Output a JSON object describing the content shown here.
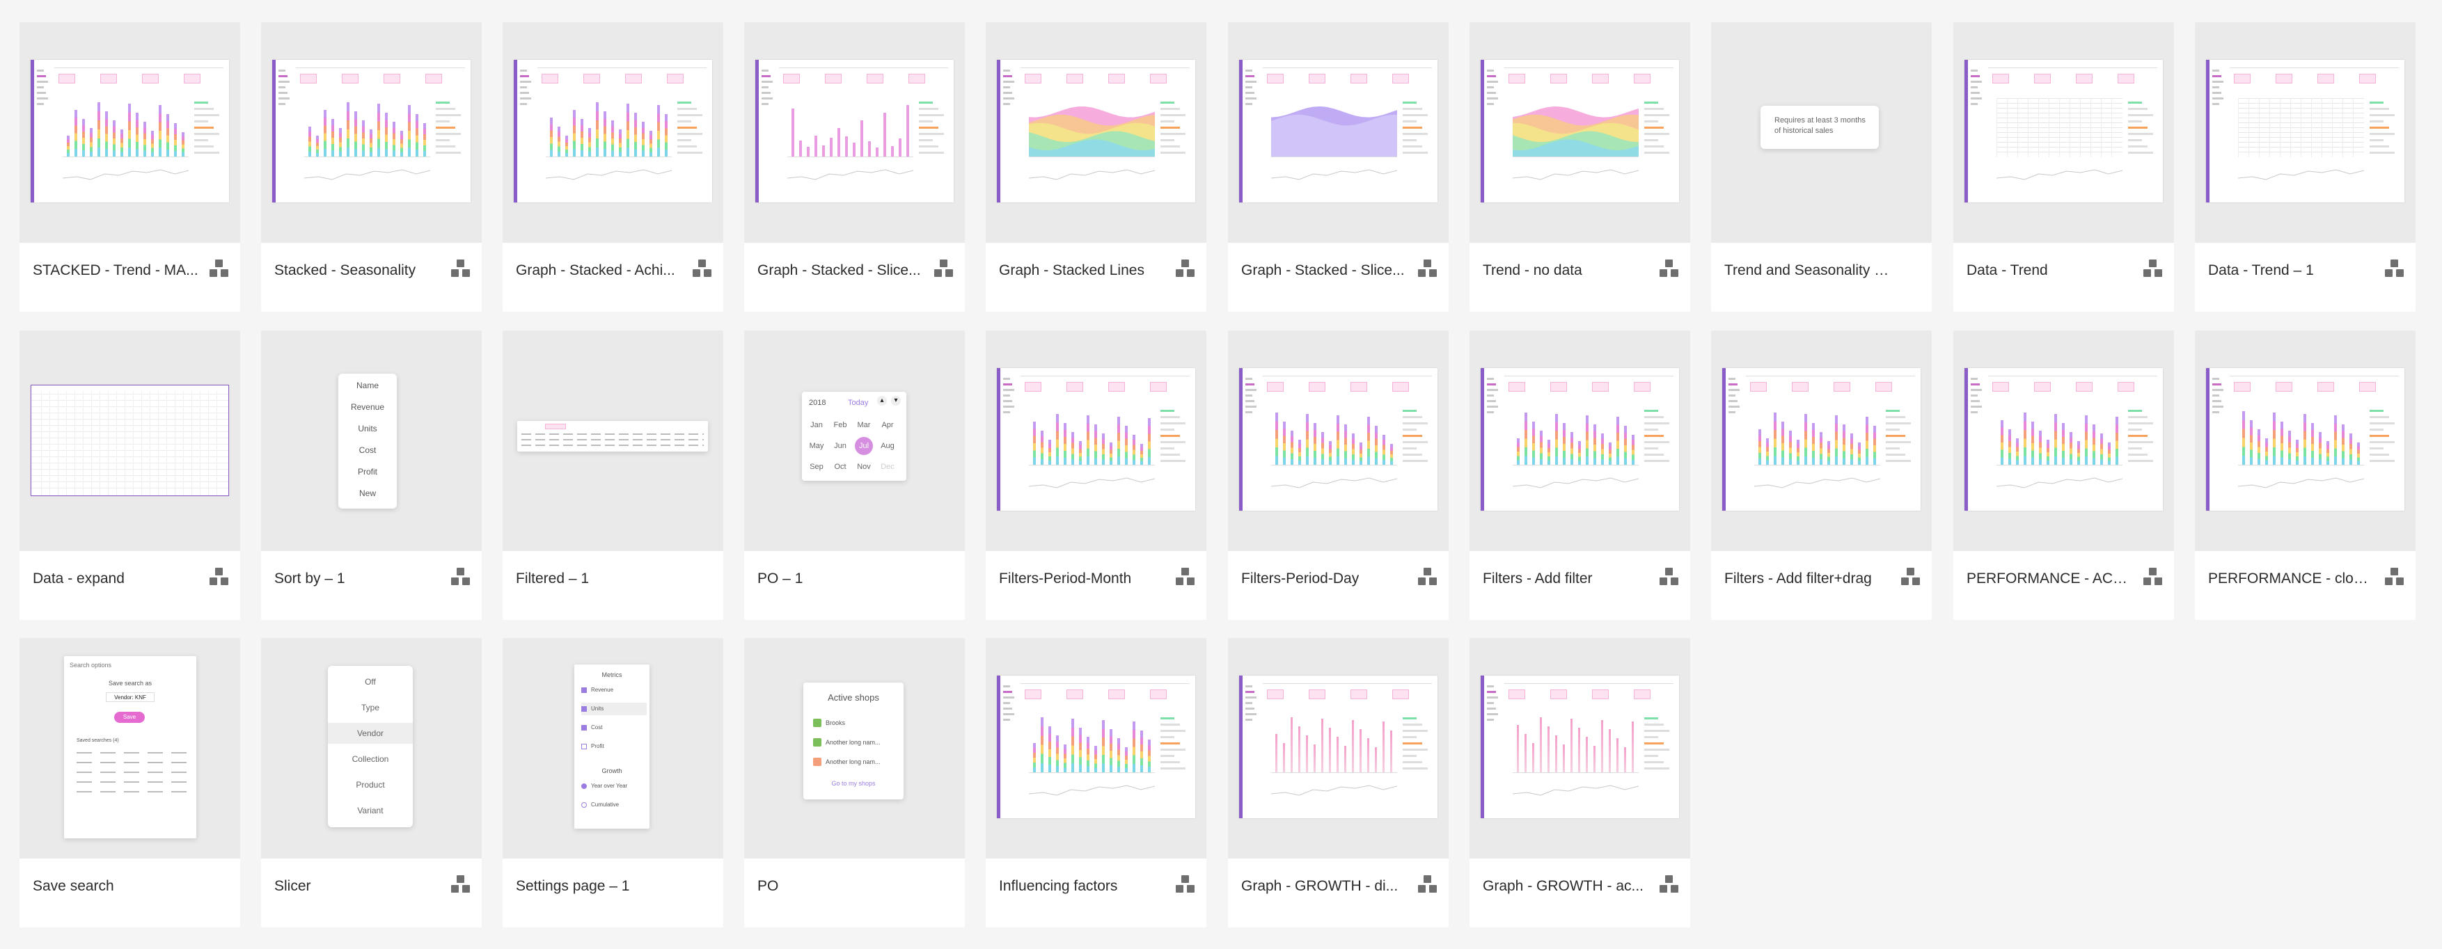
{
  "cards": [
    {
      "label": "STACKED - Trend - MA...",
      "thumb": "dashboard-stacked",
      "linked": true
    },
    {
      "label": "Stacked - Seasonality",
      "thumb": "dashboard-stacked",
      "linked": true
    },
    {
      "label": "Graph - Stacked - Achi...",
      "thumb": "dashboard-stacked",
      "linked": true
    },
    {
      "label": "Graph - Stacked - Slice...",
      "thumb": "dashboard-slice",
      "linked": true
    },
    {
      "label": "Graph - Stacked Lines",
      "thumb": "dashboard-area",
      "linked": true
    },
    {
      "label": "Graph - Stacked - Slice...",
      "thumb": "dashboard-area-purple",
      "linked": true
    },
    {
      "label": "Trend - no data",
      "thumb": "dashboard-area",
      "linked": true
    },
    {
      "label": "Trend and Seasonality help",
      "thumb": "tooltip",
      "linked": false
    },
    {
      "label": "Data - Trend",
      "thumb": "dashboard-table",
      "linked": true
    },
    {
      "label": "Data - Trend – 1",
      "thumb": "dashboard-table",
      "linked": true
    },
    {
      "label": "Data - expand",
      "thumb": "table-expand",
      "linked": true
    },
    {
      "label": "Sort by – 1",
      "thumb": "sort-menu",
      "linked": true
    },
    {
      "label": "Filtered – 1",
      "thumb": "filtered-strip",
      "linked": false
    },
    {
      "label": "PO – 1",
      "thumb": "month-picker",
      "linked": false
    },
    {
      "label": "Filters-Period-Month",
      "thumb": "dashboard-stacked",
      "linked": true
    },
    {
      "label": "Filters-Period-Day",
      "thumb": "dashboard-stacked",
      "linked": true
    },
    {
      "label": "Filters - Add filter",
      "thumb": "dashboard-stacked",
      "linked": true
    },
    {
      "label": "Filters - Add filter+drag",
      "thumb": "dashboard-stacked",
      "linked": true
    },
    {
      "label": "PERFORMANCE - ACTI...",
      "thumb": "dashboard-stacked",
      "linked": true
    },
    {
      "label": "PERFORMANCE - closed",
      "thumb": "dashboard-stacked",
      "linked": true
    },
    {
      "label": "Save search",
      "thumb": "save-search",
      "linked": false
    },
    {
      "label": "Slicer",
      "thumb": "slicer-menu",
      "linked": true
    },
    {
      "label": "Settings page – 1",
      "thumb": "settings-menu",
      "linked": false
    },
    {
      "label": "PO",
      "thumb": "active-shops",
      "linked": false
    },
    {
      "label": "Influencing factors",
      "thumb": "dashboard-stacked",
      "linked": true
    },
    {
      "label": "Graph  - GROWTH - di...",
      "thumb": "dashboard-growth",
      "linked": true
    },
    {
      "label": "Graph  - GROWTH - ac...",
      "thumb": "dashboard-growth",
      "linked": true
    }
  ],
  "tooltip_text": "Requires at least 3 months of historical sales",
  "sort_menu": [
    "Name",
    "Revenue",
    "Units",
    "Cost",
    "Profit",
    "New"
  ],
  "month_picker": {
    "year": "2018",
    "today": "Today",
    "months": [
      "Jan",
      "Feb",
      "Mar",
      "Apr",
      "May",
      "Jun",
      "Jul",
      "Aug",
      "Sep",
      "Oct",
      "Nov",
      "Dec"
    ],
    "selected": "Jul"
  },
  "slicer_menu": [
    "Off",
    "Type",
    "Vendor",
    "Collection",
    "Product",
    "Variant"
  ],
  "slicer_selected": "Vendor",
  "settings_menu": {
    "metrics_title": "Metrics",
    "metrics": [
      "Revenue",
      "Units",
      "Cost",
      "Profit"
    ],
    "graph_title": "Growth",
    "graph": [
      "Year over Year",
      "Cumulative"
    ]
  },
  "active_shops": {
    "title": "Active shops",
    "shops": [
      "Brooks",
      "Another long nam...",
      "Another long nam..."
    ],
    "link": "Go to my shops"
  },
  "save_search": {
    "search_placeholder": "Search options",
    "title": "Save search as",
    "value": "Vendor: KNF",
    "button": "Save",
    "list_title": "Saved searches (4)"
  },
  "colors": {
    "accent": "#8a5cc7",
    "pink": "#e56bd1",
    "canvas": "#f5f5f5"
  }
}
